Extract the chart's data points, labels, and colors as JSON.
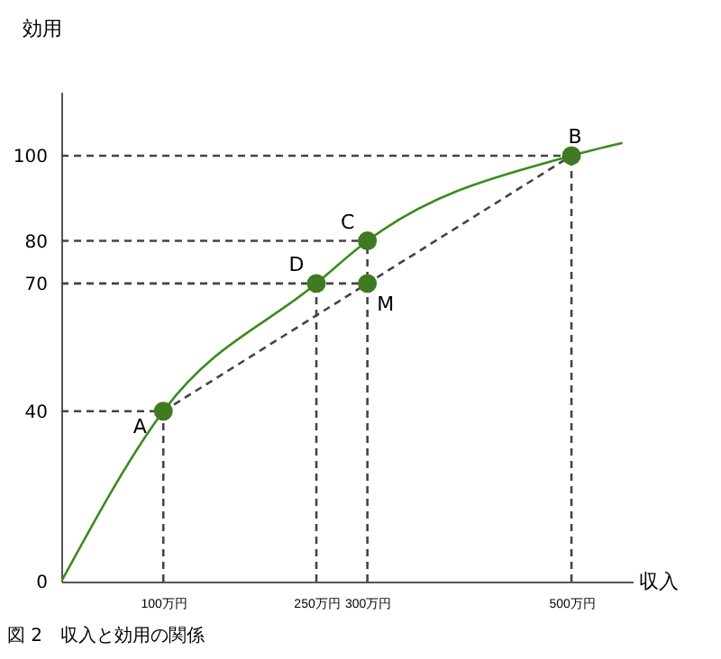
{
  "chart_data": {
    "type": "line",
    "xlabel": "収入",
    "ylabel": "効用",
    "annotations": [
      {
        "text": "A",
        "x": 100,
        "y": 40
      },
      {
        "text": "B",
        "x": 500,
        "y": 100
      },
      {
        "text": "C",
        "x": 300,
        "y": 80
      },
      {
        "text": "D",
        "x": 250,
        "y": 70
      },
      {
        "text": "M",
        "x": 300,
        "y": 70
      },
      "図 2　収入と効用の関係"
    ],
    "xlim": [
      0,
      560
    ],
    "xticks": [
      {
        "value": 100,
        "label": "100万円"
      },
      {
        "value": 250,
        "label": "250万円"
      },
      {
        "value": 300,
        "label": "300万円"
      },
      {
        "value": 500,
        "label": "500万円"
      }
    ],
    "ylim": [
      0,
      115
    ],
    "yticks": [
      0,
      40,
      70,
      80,
      100
    ],
    "grid": false,
    "series": [
      {
        "type": "line",
        "color": "#3d8a1f",
        "line_style": "solid",
        "x": [
          0,
          100,
          250,
          300,
          500,
          550
        ],
        "values": [
          0,
          40,
          70,
          80,
          100,
          103
        ]
      },
      {
        "type": "line",
        "color": "#444444",
        "line_style": "dashed",
        "x": [
          100,
          500
        ],
        "values": [
          40,
          100
        ]
      },
      {
        "type": "line",
        "color": "#444444",
        "line_style": "dashed",
        "x": [
          0,
          500
        ],
        "values": [
          100,
          100
        ]
      },
      {
        "type": "line",
        "color": "#444444",
        "line_style": "dashed",
        "x": [
          0,
          300
        ],
        "values": [
          80,
          80
        ]
      },
      {
        "type": "line",
        "color": "#444444",
        "line_style": "dashed",
        "x": [
          0,
          300
        ],
        "values": [
          70,
          70
        ]
      },
      {
        "type": "line",
        "color": "#444444",
        "line_style": "dashed",
        "x": [
          0,
          100
        ],
        "values": [
          40,
          40
        ]
      },
      {
        "type": "line",
        "color": "#444444",
        "line_style": "dashed",
        "x": [
          100,
          100
        ],
        "values": [
          0,
          40
        ]
      },
      {
        "type": "line",
        "color": "#444444",
        "line_style": "dashed",
        "x": [
          250,
          250
        ],
        "values": [
          0,
          70
        ]
      },
      {
        "type": "line",
        "color": "#444444",
        "line_style": "dashed",
        "x": [
          300,
          300
        ],
        "values": [
          0,
          80
        ]
      },
      {
        "type": "line",
        "color": "#444444",
        "line_style": "dashed",
        "x": [
          500,
          500
        ],
        "values": [
          0,
          100
        ]
      },
      {
        "type": "scatter",
        "color": "#3f7a22",
        "marker": "circle",
        "x": [
          100,
          500,
          300,
          250,
          300
        ],
        "values": [
          40,
          100,
          80,
          70,
          70
        ]
      }
    ]
  }
}
